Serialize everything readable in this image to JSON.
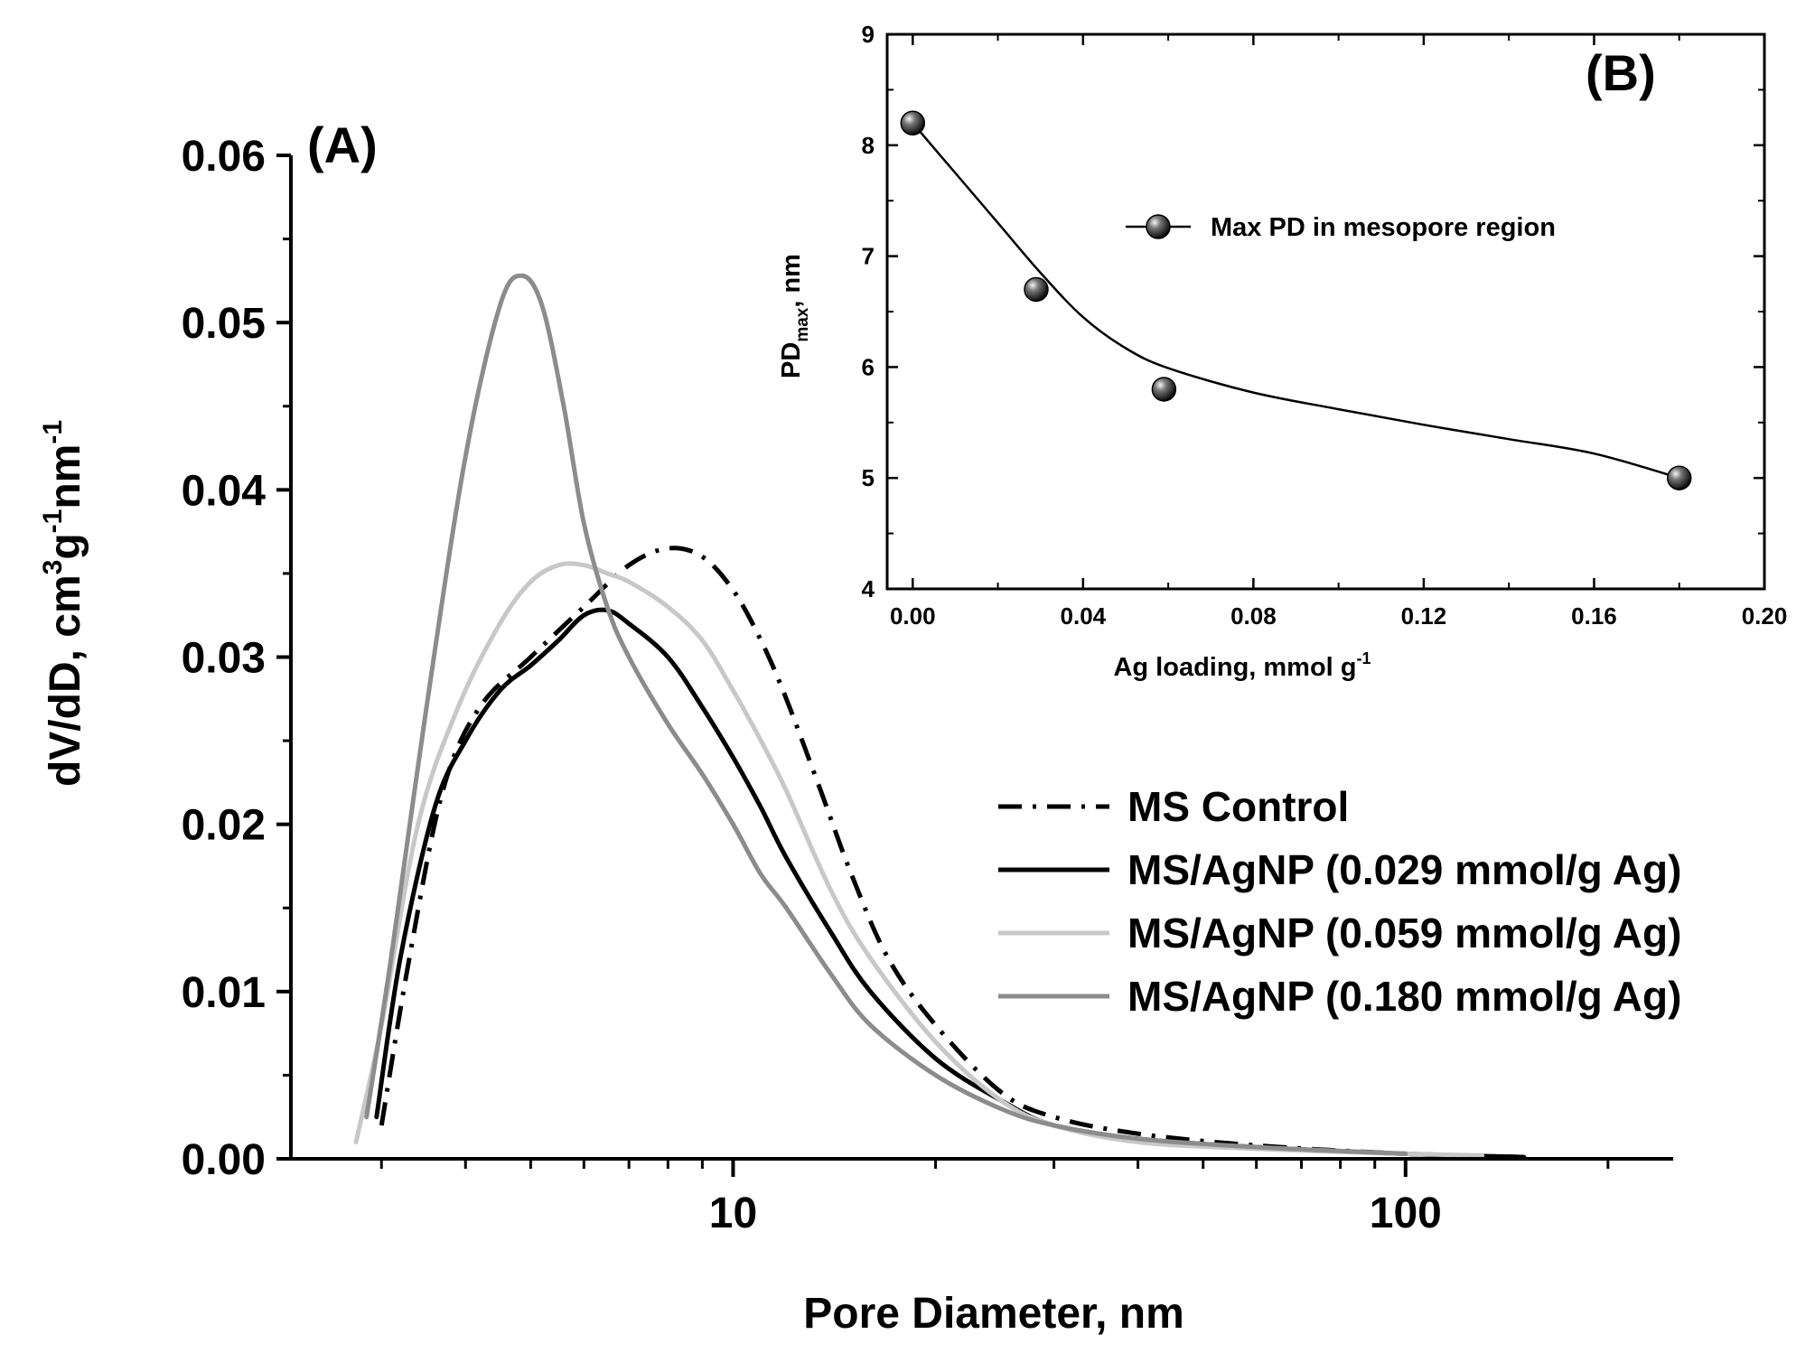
{
  "chart_data": [
    {
      "panel": "(A)",
      "type": "line",
      "xlabel": "Pore Diameter, nm",
      "ylabel": {
        "base": "dV/dD, cm",
        "sup1": "3",
        "mid1": "g",
        "sup2": "-1",
        "mid2": "nm",
        "sup3": "-1"
      },
      "xscale": "log",
      "xlim": [
        2.2,
        250
      ],
      "ylim": [
        0,
        0.06
      ],
      "x_tick_labels": [
        {
          "value": 10,
          "label": "10"
        },
        {
          "value": 100,
          "label": "100"
        }
      ],
      "y_ticks": [
        {
          "value": 0.0,
          "label": "0.00"
        },
        {
          "value": 0.01,
          "label": "0.01"
        },
        {
          "value": 0.02,
          "label": "0.02"
        },
        {
          "value": 0.03,
          "label": "0.03"
        },
        {
          "value": 0.04,
          "label": "0.04"
        },
        {
          "value": 0.05,
          "label": "0.05"
        },
        {
          "value": 0.06,
          "label": "0.06"
        }
      ],
      "legend_position": "center-right",
      "series": [
        {
          "name": "MS Control",
          "color": "#000000",
          "style": "dash-dot",
          "points": [
            [
              3.0,
              0.002
            ],
            [
              3.3,
              0.012
            ],
            [
              3.7,
              0.022
            ],
            [
              4.2,
              0.027
            ],
            [
              5.0,
              0.03
            ],
            [
              6.0,
              0.033
            ],
            [
              7.0,
              0.0355
            ],
            [
              8.0,
              0.0365
            ],
            [
              9.0,
              0.036
            ],
            [
              10.0,
              0.034
            ],
            [
              11.0,
              0.031
            ],
            [
              12.0,
              0.0275
            ],
            [
              13.5,
              0.022
            ],
            [
              15.0,
              0.017
            ],
            [
              17.0,
              0.012
            ],
            [
              20.0,
              0.008
            ],
            [
              25.0,
              0.004
            ],
            [
              30.0,
              0.0025
            ],
            [
              40.0,
              0.0015
            ],
            [
              60.0,
              0.0008
            ],
            [
              100.0,
              0.0003
            ],
            [
              150.0,
              0.0001
            ]
          ]
        },
        {
          "name": "MS/AgNP (0.029 mmol/g Ag)",
          "color": "#000000",
          "style": "solid",
          "points": [
            [
              2.95,
              0.0025
            ],
            [
              3.2,
              0.012
            ],
            [
              3.6,
              0.021
            ],
            [
              4.0,
              0.025
            ],
            [
              4.5,
              0.028
            ],
            [
              5.0,
              0.0295
            ],
            [
              5.5,
              0.031
            ],
            [
              6.0,
              0.0325
            ],
            [
              6.5,
              0.0328
            ],
            [
              7.0,
              0.032
            ],
            [
              8.0,
              0.03
            ],
            [
              9.0,
              0.027
            ],
            [
              10.0,
              0.024
            ],
            [
              11.0,
              0.021
            ],
            [
              12.0,
              0.018
            ],
            [
              14.0,
              0.0135
            ],
            [
              16.0,
              0.01
            ],
            [
              20.0,
              0.006
            ],
            [
              25.0,
              0.0035
            ],
            [
              30.0,
              0.002
            ],
            [
              40.0,
              0.0012
            ],
            [
              60.0,
              0.0007
            ],
            [
              100.0,
              0.0003
            ],
            [
              150.0,
              0.0001
            ]
          ]
        },
        {
          "name": "MS/AgNP (0.059 mmol/g Ag)",
          "color": "#c8c8c8",
          "style": "solid",
          "points": [
            [
              2.75,
              0.001
            ],
            [
              3.0,
              0.008
            ],
            [
              3.4,
              0.02
            ],
            [
              3.9,
              0.027
            ],
            [
              4.5,
              0.032
            ],
            [
              5.0,
              0.0345
            ],
            [
              5.5,
              0.0355
            ],
            [
              6.0,
              0.0355
            ],
            [
              6.5,
              0.035
            ],
            [
              7.0,
              0.0345
            ],
            [
              8.0,
              0.033
            ],
            [
              9.0,
              0.031
            ],
            [
              10.0,
              0.028
            ],
            [
              11.0,
              0.025
            ],
            [
              12.0,
              0.022
            ],
            [
              14.0,
              0.016
            ],
            [
              16.0,
              0.012
            ],
            [
              20.0,
              0.007
            ],
            [
              25.0,
              0.0035
            ],
            [
              30.0,
              0.002
            ],
            [
              40.0,
              0.001
            ],
            [
              60.0,
              0.0006
            ],
            [
              100.0,
              0.0003
            ],
            [
              130.0,
              0.0002
            ]
          ]
        },
        {
          "name": "MS/AgNP (0.180 mmol/g Ag)",
          "color": "#8c8c8c",
          "style": "solid",
          "points": [
            [
              2.85,
              0.0025
            ],
            [
              3.1,
              0.012
            ],
            [
              3.5,
              0.027
            ],
            [
              4.0,
              0.042
            ],
            [
              4.5,
              0.051
            ],
            [
              4.85,
              0.0528
            ],
            [
              5.2,
              0.051
            ],
            [
              5.6,
              0.045
            ],
            [
              6.0,
              0.038
            ],
            [
              6.5,
              0.033
            ],
            [
              7.0,
              0.03
            ],
            [
              8.0,
              0.026
            ],
            [
              9.0,
              0.023
            ],
            [
              10.0,
              0.02
            ],
            [
              11.0,
              0.017
            ],
            [
              12.0,
              0.015
            ],
            [
              14.0,
              0.011
            ],
            [
              16.0,
              0.008
            ],
            [
              20.0,
              0.005
            ],
            [
              25.0,
              0.003
            ],
            [
              30.0,
              0.002
            ],
            [
              40.0,
              0.0012
            ],
            [
              60.0,
              0.0007
            ],
            [
              100.0,
              0.0003
            ]
          ]
        }
      ]
    },
    {
      "panel": "(B)",
      "type": "line",
      "xlabel": {
        "base": "Ag loading, mmol g",
        "sup": "-1"
      },
      "ylabel": {
        "base": "PD",
        "sub": "max",
        "tail": ", nm"
      },
      "xlim": [
        -0.006,
        0.2
      ],
      "ylim": [
        4,
        9
      ],
      "x_ticks": [
        {
          "value": 0.0,
          "label": "0.00"
        },
        {
          "value": 0.04,
          "label": "0.04"
        },
        {
          "value": 0.08,
          "label": "0.08"
        },
        {
          "value": 0.12,
          "label": "0.12"
        },
        {
          "value": 0.16,
          "label": "0.16"
        },
        {
          "value": 0.2,
          "label": "0.20"
        }
      ],
      "y_ticks": [
        {
          "value": 4,
          "label": "4"
        },
        {
          "value": 5,
          "label": "5"
        },
        {
          "value": 6,
          "label": "6"
        },
        {
          "value": 7,
          "label": "7"
        },
        {
          "value": 8,
          "label": "8"
        },
        {
          "value": 9,
          "label": "9"
        }
      ],
      "legend_position": "top-right",
      "series": [
        {
          "name": "Max PD in mesopore region",
          "color": "#000000",
          "marker": "sphere",
          "points": [
            [
              0.0,
              8.2
            ],
            [
              0.029,
              6.7
            ],
            [
              0.059,
              5.8
            ],
            [
              0.18,
              5.0
            ]
          ],
          "fit_curve": [
            [
              0.0,
              8.2
            ],
            [
              0.01,
              7.75
            ],
            [
              0.02,
              7.3
            ],
            [
              0.03,
              6.85
            ],
            [
              0.04,
              6.45
            ],
            [
              0.05,
              6.17
            ],
            [
              0.06,
              5.99
            ],
            [
              0.08,
              5.77
            ],
            [
              0.1,
              5.62
            ],
            [
              0.12,
              5.48
            ],
            [
              0.14,
              5.35
            ],
            [
              0.16,
              5.22
            ],
            [
              0.18,
              5.0
            ]
          ]
        }
      ]
    }
  ]
}
